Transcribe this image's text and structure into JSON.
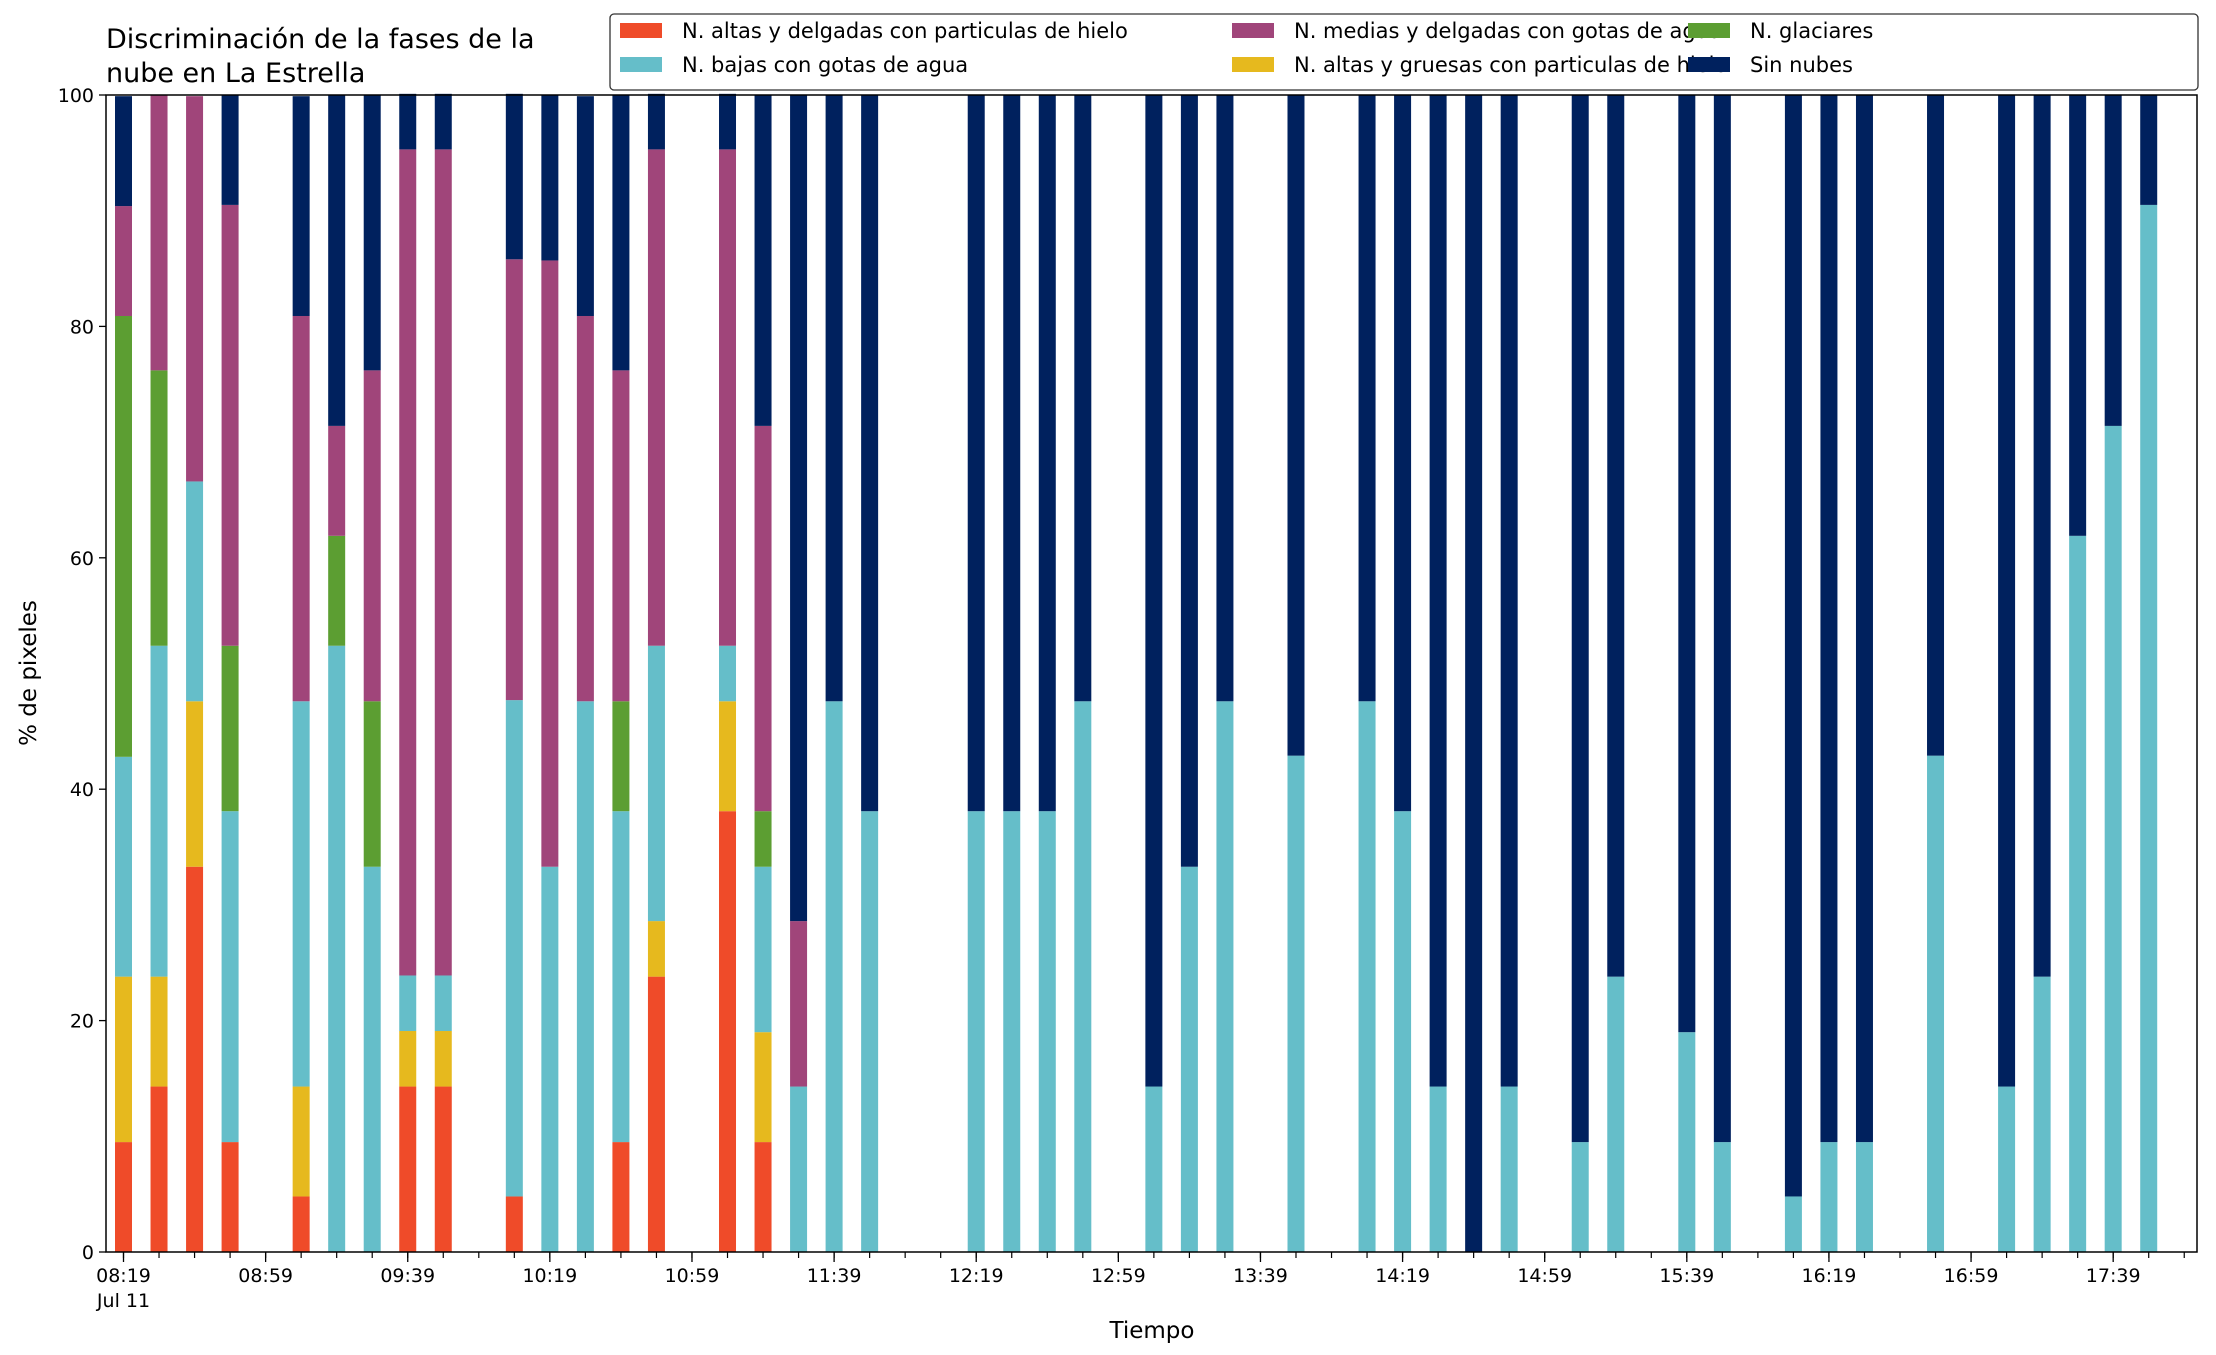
{
  "chart_data": {
    "type": "bar",
    "stacked": true,
    "title_lines": [
      "Discriminación de la fases de la",
      "nube en La Estrella"
    ],
    "xlabel": "Tiempo",
    "ylabel": "% de pixeles",
    "ylim": [
      0,
      100
    ],
    "yticks": [
      0,
      20,
      40,
      60,
      80,
      100
    ],
    "grid": false,
    "legend_position": "top-right",
    "x_start": "08:19",
    "x_step_minutes": 10,
    "x_tick_labels": [
      "08:19",
      "08:59",
      "09:39",
      "10:19",
      "10:59",
      "11:39",
      "12:19",
      "12:59",
      "13:39",
      "14:19",
      "14:59",
      "15:39",
      "16:19",
      "16:59",
      "17:39"
    ],
    "x_date_label": "Jul 11",
    "x": [
      "08:19",
      "08:29",
      "08:39",
      "08:49",
      "08:59",
      "09:09",
      "09:19",
      "09:29",
      "09:39",
      "09:49",
      "09:59",
      "10:09",
      "10:19",
      "10:29",
      "10:39",
      "10:49",
      "10:59",
      "11:09",
      "11:19",
      "11:29",
      "11:39",
      "11:49",
      "11:59",
      "12:09",
      "12:19",
      "12:29",
      "12:39",
      "12:49",
      "12:59",
      "13:09",
      "13:19",
      "13:29",
      "13:39",
      "13:49",
      "13:59",
      "14:09",
      "14:19",
      "14:29",
      "14:39",
      "14:49",
      "14:59",
      "15:09",
      "15:19",
      "15:29",
      "15:39",
      "15:49",
      "15:59",
      "16:09",
      "16:19",
      "16:29",
      "16:39",
      "16:49",
      "16:59",
      "17:09",
      "17:19",
      "17:29",
      "17:39",
      "17:49",
      "17:59"
    ],
    "series": [
      {
        "name": "N. altas y delgadas con particulas de hielo",
        "color": "#ef4b29",
        "values": [
          9.5,
          14.3,
          33.3,
          9.5,
          0,
          4.8,
          0,
          0,
          14.3,
          14.3,
          0,
          4.8,
          0,
          0,
          9.5,
          23.8,
          0,
          38.1,
          9.5,
          0,
          0,
          0,
          0,
          0,
          0,
          0,
          0,
          0,
          0,
          0,
          0,
          0,
          0,
          0,
          0,
          0,
          0,
          0,
          0,
          0,
          0,
          0,
          0,
          0,
          0,
          0,
          0,
          0,
          0,
          0,
          0,
          0,
          0,
          0,
          0,
          0,
          0,
          0,
          0
        ]
      },
      {
        "name": "N. altas y gruesas con particulas de hielo",
        "color": "#e6b91e",
        "values": [
          14.3,
          9.5,
          14.3,
          0,
          0,
          9.5,
          0,
          0,
          4.8,
          4.8,
          0,
          0,
          0,
          0,
          0,
          4.8,
          0,
          9.5,
          9.5,
          0,
          0,
          0,
          0,
          0,
          0,
          0,
          0,
          0,
          0,
          0,
          0,
          0,
          0,
          0,
          0,
          0,
          0,
          0,
          0,
          0,
          0,
          0,
          0,
          0,
          0,
          0,
          0,
          0,
          0,
          0,
          0,
          0,
          0,
          0,
          0,
          0,
          0,
          0,
          0
        ]
      },
      {
        "name": "N. bajas con gotas de agua",
        "color": "#65bec9",
        "values": [
          19.0,
          28.6,
          19.0,
          28.6,
          0,
          33.3,
          52.4,
          33.3,
          4.8,
          4.8,
          0,
          42.9,
          33.3,
          47.6,
          28.6,
          23.8,
          0,
          4.8,
          14.3,
          14.3,
          47.6,
          38.1,
          0,
          0,
          38.1,
          38.1,
          38.1,
          47.6,
          0,
          14.3,
          33.3,
          47.6,
          0,
          42.9,
          0,
          47.6,
          38.1,
          14.3,
          0,
          14.3,
          0,
          9.5,
          23.8,
          0,
          19.0,
          9.5,
          0,
          4.8,
          9.5,
          9.5,
          0,
          42.9,
          0,
          14.3,
          23.8,
          61.9,
          71.4,
          90.5,
          0
        ]
      },
      {
        "name": "N. glaciares",
        "color": "#5c9e32",
        "values": [
          38.1,
          23.8,
          0,
          14.3,
          0,
          0,
          9.5,
          14.3,
          0,
          0,
          0,
          0,
          0,
          0,
          9.5,
          0,
          0,
          0,
          4.8,
          0,
          0,
          0,
          0,
          0,
          0,
          0,
          0,
          0,
          0,
          0,
          0,
          0,
          0,
          0,
          0,
          0,
          0,
          0,
          0,
          0,
          0,
          0,
          0,
          0,
          0,
          0,
          0,
          0,
          0,
          0,
          0,
          0,
          0,
          0,
          0,
          0,
          0,
          0,
          0
        ]
      },
      {
        "name": "N. medias y delgadas con gotas de agua",
        "color": "#a0457a",
        "values": [
          9.5,
          23.8,
          33.3,
          38.1,
          0,
          33.3,
          9.5,
          28.6,
          71.4,
          71.4,
          0,
          38.1,
          52.4,
          33.3,
          28.6,
          42.9,
          0,
          42.9,
          33.3,
          14.3,
          0,
          0,
          0,
          0,
          0,
          0,
          0,
          0,
          0,
          0,
          0,
          0,
          0,
          0,
          0,
          0,
          0,
          0,
          0,
          0,
          0,
          0,
          0,
          0,
          0,
          0,
          0,
          0,
          0,
          0,
          0,
          0,
          0,
          0,
          0,
          0,
          0,
          0,
          0
        ]
      },
      {
        "name": "Sin nubes",
        "color": "#00215e",
        "values": [
          9.5,
          0,
          0,
          9.5,
          0,
          19.0,
          28.6,
          23.8,
          4.8,
          4.8,
          0,
          14.3,
          14.3,
          19.0,
          23.8,
          4.8,
          0,
          4.8,
          28.6,
          71.4,
          52.4,
          61.9,
          0,
          0,
          61.9,
          61.9,
          61.9,
          52.4,
          0,
          85.7,
          66.7,
          52.4,
          0,
          57.1,
          0,
          52.4,
          61.9,
          85.7,
          100,
          85.7,
          0,
          90.5,
          76.2,
          0,
          81.0,
          90.5,
          0,
          95.2,
          90.5,
          90.5,
          0,
          57.1,
          0,
          85.7,
          76.2,
          38.1,
          28.6,
          9.5,
          0
        ]
      }
    ],
    "legend_order": [
      0,
      2,
      4,
      1,
      3,
      5
    ]
  }
}
